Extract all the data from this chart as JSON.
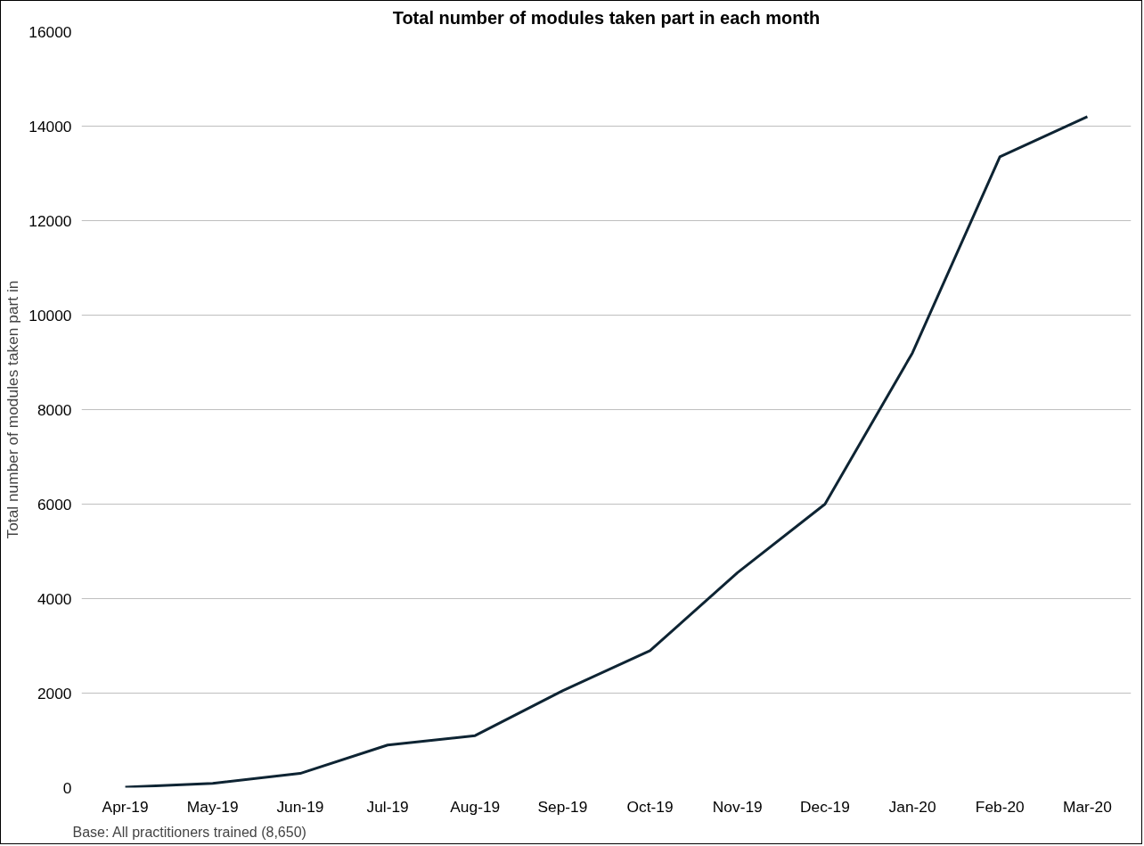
{
  "chart_data": {
    "type": "line",
    "title": "Total number of modules taken part in each month",
    "ylabel": "Total number of modules taken part in",
    "categories": [
      "Apr-19",
      "May-19",
      "Jun-19",
      "Jul-19",
      "Aug-19",
      "Sep-19",
      "Oct-19",
      "Nov-19",
      "Dec-19",
      "Jan-20",
      "Feb-20",
      "Mar-20"
    ],
    "series": [
      {
        "color": "#0e2433",
        "values": [
          10,
          90,
          300,
          900,
          1100,
          2050,
          2900,
          4550,
          6000,
          9200,
          13350,
          14200
        ]
      }
    ],
    "ylim": [
      0,
      16000
    ],
    "yticks": [
      0,
      2000,
      4000,
      6000,
      8000,
      10000,
      12000,
      14000,
      16000
    ],
    "grid": "y",
    "marker": "none",
    "line_style": "solid",
    "annotations": [
      "Base: All practitioners trained (8,650)"
    ]
  }
}
